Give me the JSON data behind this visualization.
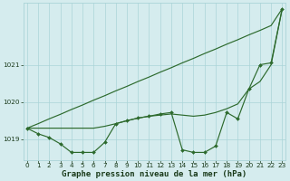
{
  "xlabel": "Graphe pression niveau de la mer (hPa)",
  "x_values": [
    0,
    1,
    2,
    3,
    4,
    5,
    6,
    7,
    8,
    9,
    10,
    11,
    12,
    13,
    14,
    15,
    16,
    17,
    18,
    19,
    20,
    21,
    22,
    23
  ],
  "line1_y": [
    1019.3,
    1019.42,
    1019.55,
    1019.67,
    1019.8,
    1019.92,
    1020.05,
    1020.17,
    1020.3,
    1020.42,
    1020.55,
    1020.67,
    1020.8,
    1020.92,
    1021.05,
    1021.17,
    1021.3,
    1021.42,
    1021.55,
    1021.67,
    1021.8,
    1021.92,
    1022.05,
    1022.5
  ],
  "line2_y": [
    1019.3,
    1019.3,
    1019.3,
    1019.3,
    1019.3,
    1019.3,
    1019.3,
    1019.35,
    1019.42,
    1019.5,
    1019.57,
    1019.62,
    1019.65,
    1019.68,
    1019.65,
    1019.62,
    1019.65,
    1019.72,
    1019.82,
    1019.95,
    1020.35,
    1020.55,
    1021.0,
    1022.5
  ],
  "line3_y": [
    1019.3,
    1019.15,
    1019.05,
    1018.88,
    1018.65,
    1018.65,
    1018.65,
    1018.92,
    1019.42,
    1019.5,
    1019.57,
    1019.62,
    1019.68,
    1019.72,
    1018.72,
    1018.65,
    1018.65,
    1018.82,
    1019.72,
    1019.55,
    1020.35,
    1021.0,
    1021.05,
    1022.5
  ],
  "ylim": [
    1018.45,
    1022.65
  ],
  "yticks": [
    1019,
    1020,
    1021
  ],
  "xlim": [
    -0.3,
    23.3
  ],
  "xticks": [
    0,
    1,
    2,
    3,
    4,
    5,
    6,
    7,
    8,
    9,
    10,
    11,
    12,
    13,
    14,
    15,
    16,
    17,
    18,
    19,
    20,
    21,
    22,
    23
  ],
  "bg_color": "#d5ecee",
  "grid_color": "#aad4d8",
  "line_color": "#2d6a2d",
  "text_color": "#1a3a1a",
  "label_fontsize": 6.5,
  "tick_fontsize": 5.2
}
